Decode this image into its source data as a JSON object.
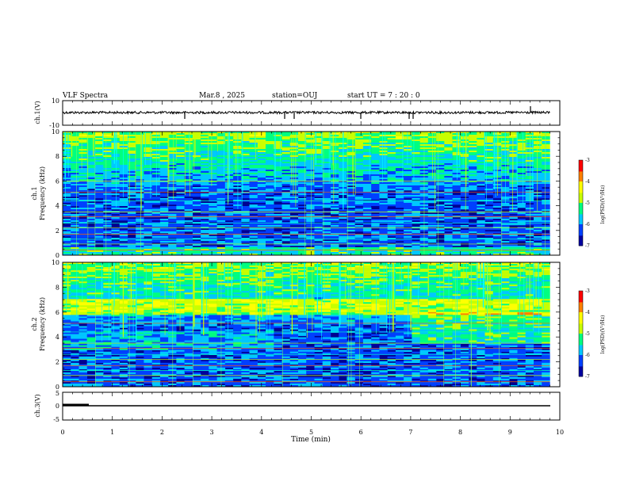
{
  "header": {
    "title": "VLF Spectra",
    "date": "Mar.8 , 2025",
    "station": "station=OUJ",
    "start": "start UT = 7 : 20 : 0"
  },
  "chart_data": [
    {
      "type": "line",
      "panel": "ch1-waveform",
      "ylabel": "ch.1(V)",
      "ylim": [
        -10,
        10
      ],
      "yticks": [
        "10",
        "-10"
      ],
      "xlim": [
        0,
        10
      ],
      "series": [
        {
          "values_description_level": 0,
          "x_range": [
            0,
            9.8
          ]
        }
      ]
    },
    {
      "type": "heatmap",
      "panel": "ch1-spectrogram",
      "ylabel": "ch.1 Frequency (kHz)",
      "ylabel_parts": [
        "ch.1",
        "Frequency (kHz)"
      ],
      "ylim": [
        0,
        10
      ],
      "yticks": [
        "0",
        "2",
        "4",
        "6",
        "8",
        "10"
      ],
      "xlim": [
        0,
        10
      ],
      "colorbar": {
        "label": "log(PSD)(V²/Hz)",
        "range": [
          -7,
          -3
        ],
        "ticks": [
          "-3",
          "-4",
          "-5",
          "-6",
          "-7"
        ]
      }
    },
    {
      "type": "heatmap",
      "panel": "ch2-spectrogram",
      "ylabel": "ch.2 Frequency (kHz)",
      "ylabel_parts": [
        "ch.2",
        "Frequency (kHz)"
      ],
      "ylim": [
        0,
        10
      ],
      "yticks": [
        "0",
        "2",
        "4",
        "6",
        "8",
        "10"
      ],
      "xlim": [
        0,
        10
      ],
      "colorbar": {
        "label": "log(PSD)(V²/Hz)",
        "range": [
          -7,
          -3
        ],
        "ticks": [
          "-3",
          "-4",
          "-5",
          "-6",
          "-7"
        ]
      }
    },
    {
      "type": "line",
      "panel": "ch3-waveform",
      "ylabel": "ch.3(V)",
      "ylim": [
        -5,
        5
      ],
      "yticks": [
        "5",
        "0",
        "-5"
      ],
      "xlim": [
        0,
        10
      ],
      "series": [
        {
          "level": -1,
          "x_range": [
            0,
            9.8
          ]
        }
      ]
    }
  ],
  "xaxis": {
    "label": "Time (min)",
    "ticks": [
      "0",
      "1",
      "2",
      "3",
      "4",
      "5",
      "6",
      "7",
      "8",
      "9",
      "10"
    ]
  },
  "colors": {
    "cmap": [
      "#0000a0",
      "#0040ff",
      "#00c8ff",
      "#00ff80",
      "#c8ff00",
      "#ffff00",
      "#ff8000",
      "#ff0000",
      "#ffffff"
    ],
    "axes": "#000000"
  }
}
